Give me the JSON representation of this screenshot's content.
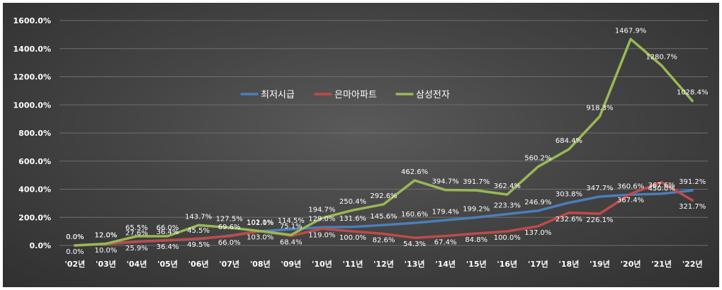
{
  "chart_data": {
    "type": "line",
    "categories": [
      "'02년",
      "'03년",
      "'04년",
      "'05년",
      "'06년",
      "'07년",
      "'08년",
      "'09년",
      "'10년",
      "'11년",
      "'12년",
      "'13년",
      "'14년",
      "'15년",
      "'16년",
      "'17년",
      "'18년",
      "'19년",
      "'20년",
      "'21년",
      "'22년"
    ],
    "ylim": [
      0,
      1600
    ],
    "yticks": [
      0,
      200,
      400,
      600,
      800,
      1000,
      1200,
      1400,
      1600
    ],
    "y_tick_labels": [
      "0.0%",
      "200.0%",
      "400.0%",
      "600.0%",
      "800.0%",
      "1000.0%",
      "1200.0%",
      "1400.0%",
      "1600.0%"
    ],
    "grid": "horizontal",
    "legend_position": "upper-center",
    "series": [
      {
        "name": "최저시급",
        "color": "#4a7ebb",
        "values": [
          0,
          12.0,
          27.6,
          36.4,
          45.5,
          69.6,
          101.0,
          114.5,
          129.0,
          131.6,
          145.6,
          160.6,
          179.4,
          199.2,
          223.3,
          246.9,
          303.8,
          347.7,
          360.6,
          367.6,
          391.2
        ],
        "labels": [
          "0.0%",
          "12.0%",
          "27.6%",
          "36.4%",
          "45.5%",
          "69.6%",
          "101.0%",
          "114.5%",
          "129.0%",
          "131.6%",
          "145.6%",
          "160.6%",
          "179.4%",
          "199.2%",
          "223.3%",
          "246.9%",
          "303.8%",
          "347.7%",
          "360.6%",
          "367.6%",
          "391.2%"
        ]
      },
      {
        "name": "은마아파트",
        "color": "#be4b48",
        "values": [
          0,
          10.0,
          25.9,
          36.4,
          49.5,
          66.0,
          103.0,
          68.4,
          119.0,
          100.0,
          82.6,
          54.3,
          67.4,
          84.8,
          100.0,
          137.0,
          232.6,
          226.1,
          367.4,
          450.0,
          321.7
        ],
        "labels": [
          "0.0%",
          "10.0%",
          "25.9%",
          "36.4%",
          "49.5%",
          "66.0%",
          "103.0%",
          "68.4%",
          "119.0%",
          "100.0%",
          "82.6%",
          "54.3%",
          "67.4%",
          "84.8%",
          "100.0%",
          "137.0%",
          "232.6%",
          "226.1%",
          "367.4%",
          "450.0%",
          "321.7%"
        ]
      },
      {
        "name": "삼성전자",
        "color": "#98b954",
        "values": [
          0,
          12.0,
          65.5,
          66.0,
          143.7,
          127.5,
          102.1,
          75.1,
          194.7,
          250.4,
          292.6,
          462.6,
          394.7,
          391.7,
          362.4,
          560.2,
          684.4,
          918.3,
          1467.9,
          1280.7,
          1028.4
        ],
        "labels": [
          "0.0%",
          "12.0%",
          "65.5%",
          "66.0%",
          "143.7%",
          "127.5%",
          "102.1%",
          "75.1%",
          "194.7%",
          "250.4%",
          "292.6%",
          "462.6%",
          "394.7%",
          "391.7%",
          "362.4%",
          "560.2%",
          "684.4%",
          "918.3%",
          "1467.9%",
          "1280.7%",
          "1028.4%"
        ]
      }
    ]
  }
}
